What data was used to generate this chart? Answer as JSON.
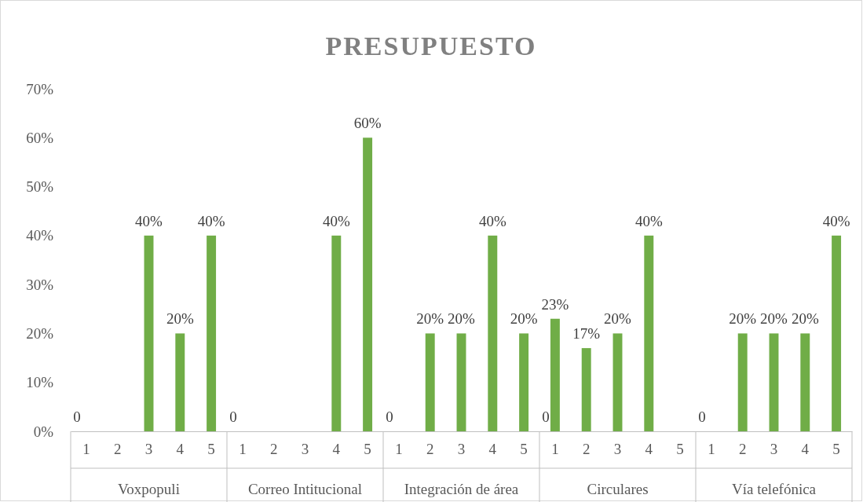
{
  "chart_data": {
    "type": "bar",
    "title": "PRESUPUESTO",
    "categories": [
      "1",
      "2",
      "3",
      "4",
      "5",
      "1",
      "2",
      "3",
      "4",
      "5",
      "1",
      "2",
      "3",
      "4",
      "5",
      "1",
      "2",
      "3",
      "4",
      "5",
      "1",
      "2",
      "3",
      "4",
      "5"
    ],
    "series": [
      {
        "color": "#70ad47",
        "values": [
          0,
          null,
          null,
          null,
          null,
          0,
          null,
          null,
          null,
          null,
          0,
          null,
          null,
          null,
          null,
          0,
          null,
          null,
          null,
          null,
          0,
          null,
          null,
          null,
          null
        ],
        "value_labels": [
          "0",
          null,
          null,
          null,
          null,
          "0",
          null,
          null,
          null,
          null,
          "0",
          null,
          null,
          null,
          null,
          "0",
          null,
          null,
          null,
          null,
          "0",
          null,
          null,
          null,
          null
        ]
      },
      {
        "color": "#70ad47",
        "values": [
          null,
          null,
          40,
          20,
          40,
          null,
          null,
          null,
          40,
          60,
          null,
          20,
          20,
          40,
          20,
          23,
          17,
          20,
          40,
          null,
          null,
          20,
          20,
          20,
          40
        ],
        "value_labels": [
          null,
          null,
          "40%",
          "20%",
          "40%",
          null,
          null,
          null,
          "40%",
          "60%",
          null,
          "20%",
          "20%",
          "40%",
          "20%",
          "23%",
          "17%",
          "20%",
          "40%",
          null,
          null,
          "20%",
          "20%",
          "20%",
          "40%"
        ]
      }
    ],
    "annotations": [
      "Voxpopuli",
      "Correo Intitucional",
      "Integración de área",
      "Circulares",
      "Vía telefónica"
    ],
    "ylim": [
      0,
      70
    ],
    "yticks": [
      {
        "value": 0,
        "label": "0%"
      },
      {
        "value": 10,
        "label": "10%"
      },
      {
        "value": 20,
        "label": "20%"
      },
      {
        "value": 30,
        "label": "30%"
      },
      {
        "value": 40,
        "label": "40%"
      },
      {
        "value": 50,
        "label": "50%"
      },
      {
        "value": 60,
        "label": "60%"
      },
      {
        "value": 70,
        "label": "70%"
      }
    ],
    "grid": false
  }
}
